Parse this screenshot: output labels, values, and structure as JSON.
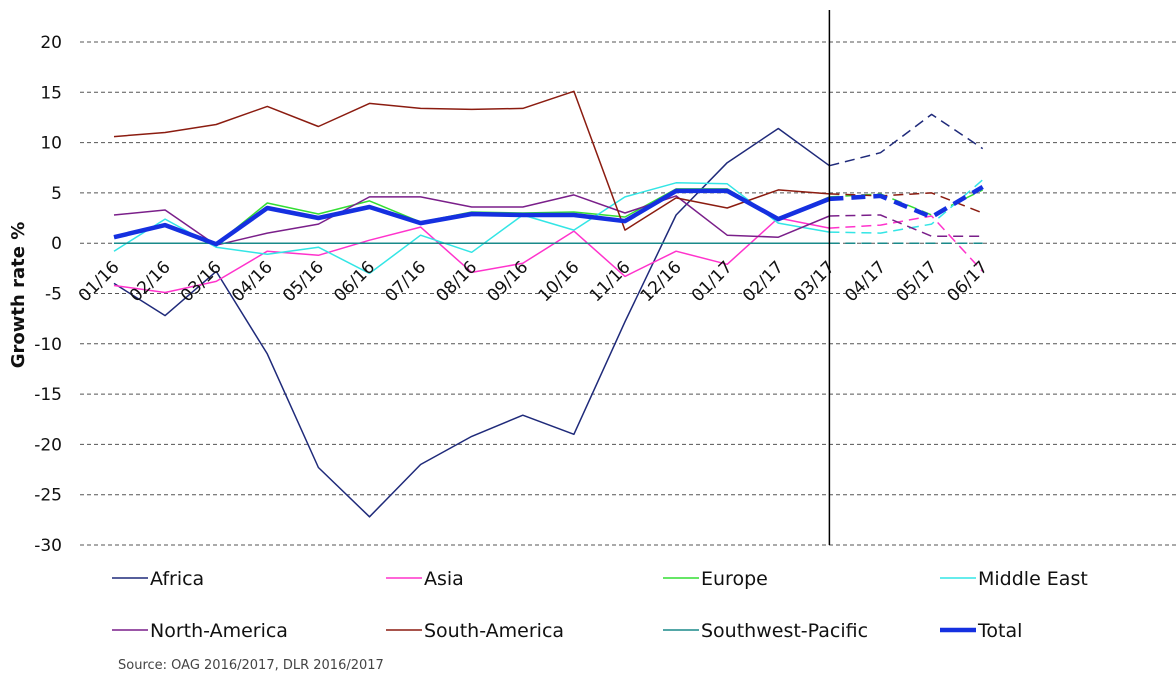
{
  "chart_data": {
    "type": "line",
    "ylabel": "Growth rate %",
    "xlabel": "",
    "title": "",
    "ylim": [
      -30,
      20
    ],
    "yticks": [
      20,
      15,
      10,
      5,
      0,
      -5,
      -10,
      -15,
      -20,
      -25,
      -30
    ],
    "grid": "horizontal dashed",
    "categories": [
      "01/16",
      "02/16",
      "03/16",
      "04/16",
      "05/16",
      "06/16",
      "07/16",
      "08/16",
      "09/16",
      "10/16",
      "11/16",
      "12/16",
      "01/17",
      "02/17",
      "03/17",
      "04/17",
      "05/17",
      "06/17"
    ],
    "forecast_from": "03/17",
    "series": [
      {
        "name": "Africa",
        "color": "#1f2a7a",
        "width": 1.5,
        "values": [
          -4.0,
          -7.2,
          -2.8,
          -11.0,
          -22.3,
          -27.2,
          -22.0,
          -19.2,
          -17.1,
          -19.0,
          -7.8,
          2.8,
          8.0,
          11.4,
          7.7,
          9.0,
          12.8,
          9.4
        ]
      },
      {
        "name": "Asia",
        "color": "#ff33cc",
        "width": 1.5,
        "values": [
          -4.2,
          -4.9,
          -3.8,
          -0.8,
          -1.2,
          0.3,
          1.6,
          -2.9,
          -2.0,
          1.2,
          -3.3,
          -0.8,
          -2.1,
          2.5,
          1.5,
          1.8,
          2.7,
          -2.8
        ]
      },
      {
        "name": "Europe",
        "color": "#33dd33",
        "width": 1.5,
        "values": [
          0.6,
          1.7,
          -0.1,
          4.0,
          2.9,
          4.2,
          2.1,
          3.1,
          3.0,
          3.1,
          2.6,
          5.4,
          5.4,
          2.4,
          4.6,
          4.9,
          2.8,
          5.3
        ]
      },
      {
        "name": "Middle East",
        "color": "#33e5e5",
        "width": 1.5,
        "values": [
          -0.8,
          2.4,
          -0.4,
          -1.1,
          -0.4,
          -3.0,
          0.8,
          -0.9,
          2.8,
          1.3,
          4.6,
          6.0,
          5.9,
          2.0,
          1.1,
          1.0,
          1.9,
          6.3
        ]
      },
      {
        "name": "North-America",
        "color": "#7a1f8a",
        "width": 1.5,
        "values": [
          2.8,
          3.3,
          -0.2,
          1.0,
          1.9,
          4.6,
          4.6,
          3.6,
          3.6,
          4.8,
          3.0,
          4.7,
          0.8,
          0.6,
          2.7,
          2.8,
          0.7,
          0.7
        ]
      },
      {
        "name": "South-America",
        "color": "#8b1c10",
        "width": 1.5,
        "values": [
          10.6,
          11.0,
          11.8,
          13.6,
          11.6,
          13.9,
          13.4,
          13.3,
          13.4,
          15.1,
          1.3,
          4.5,
          3.5,
          5.3,
          4.9,
          4.7,
          5.0,
          3.0
        ]
      },
      {
        "name": "Southwest-Pacific",
        "color": "#1a8a8a",
        "width": 1.5,
        "values": [
          0,
          0,
          0,
          0,
          0,
          0,
          0,
          0,
          0,
          0,
          0,
          0,
          0,
          0,
          0,
          0,
          0,
          0
        ]
      },
      {
        "name": "Total",
        "color": "#1530e0",
        "width": 4.5,
        "values": [
          0.6,
          1.8,
          -0.1,
          3.5,
          2.5,
          3.6,
          2.0,
          2.9,
          2.8,
          2.8,
          2.2,
          5.2,
          5.2,
          2.4,
          4.4,
          4.7,
          2.6,
          5.6
        ]
      }
    ],
    "legend": "bottom",
    "source": "Source: OAG 2016/2017, DLR 2016/2017"
  }
}
